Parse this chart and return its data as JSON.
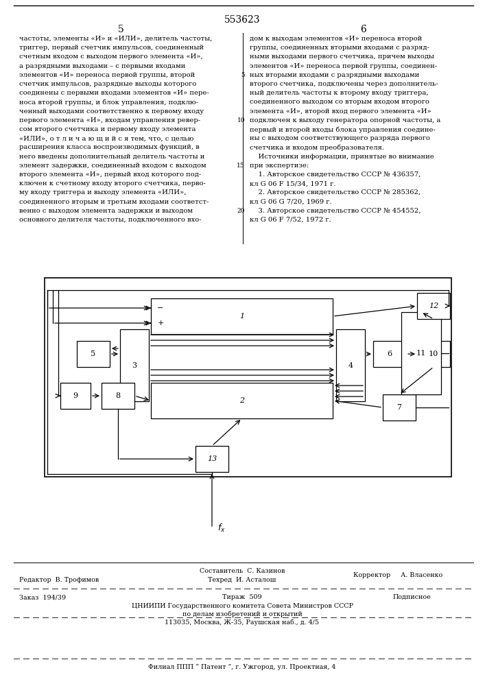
{
  "patent_number": "553623",
  "col1_text": [
    "частоты, элементы «И» и «ИЛИ», делитель частоты,",
    "триггер, первый счетчик импульсов, соединенный",
    "счетным входом с выходом первого элемента «И»,",
    "а разрядными выходами – с первыми входами",
    "элементов «И» переноса первой группы, второй",
    "счетчик импульсов, разрядные выходы которого",
    "соединены с первыми входами элементов «И» пере-",
    "носа второй группы, и блок управления, подклю-",
    "ченный выходами соответственно к первому входу",
    "первого элемента «И», входам управления ревер-",
    "сом второго счетчика и первому входу элемента",
    "«ИЛИ», о т л и ч а ю щ и й с я тем, что, с целью",
    "расширения класса воспроизводимых функций, в",
    "него введены дополнительный делитель частоты и",
    "элемент задержки, соединенный входом с выходом",
    "второго элемента «И», первый вход которого под-",
    "ключен к счетному входу второго счетчика, перво-",
    "му входу триггера и выходу элемента «ИЛИ»,",
    "соединенного вторым и третьим входами соответст-",
    "венно с выходом элемента задержки и выходом",
    "основного делителя частоты, подключенного вхо-"
  ],
  "col2_text": [
    "дом к выходам элементов «И» переноса второй",
    "группы, соединенных вторыми входами с разряд-",
    "ными выходами первого счетчика, причем выходы",
    "элементов «И» переноса первой группы, соединен-",
    "ных вторыми входами с разрядными выходами",
    "второго счетчика, подключены через дополнитель-",
    "ный делитель частоты к второму входу триггера,",
    "соединенного выходом со вторым входом второго",
    "элемента «И», второй вход первого элемента «И»",
    "подключен к выходу генератора опорной частоты, а",
    "первый и второй входы блока управления соедине-",
    "ны с выходом соответствующего разряда первого",
    "счетчика и входом преобразователя.",
    "    Источники информации, принятые во внимание",
    "при экспертизе:",
    "    1. Авторское свидетельство СССР № 436357,",
    "кл G 06 F 15/34, 1971 г.",
    "    2. Авторское свидетельство СССР № 285362,",
    "кл G 06 G 7/20, 1969 г.",
    "    3. Авторское свидетельство СССР № 454552,",
    "кл G 06 F 7/52, 1972 г."
  ],
  "col2_line_numbers": {
    "4": "5",
    "9": "10",
    "14": "15",
    "19": "20"
  },
  "footer_compositor": "Составитель  С. Казинов",
  "footer_techred": "Техред  И. Асталош",
  "footer_corrector": "Корректор     А. Власенко",
  "footer_editor": "Редактор  В. Трофимов",
  "footer_order": "Заказ  194/39",
  "footer_circ_sym": "◦",
  "footer_tirazh": "Тираж  509",
  "footer_podpisnoe": "Подписное",
  "footer_org": "ЦНИИПИ Государственного комитета Совета Министров СССР",
  "footer_dept": "по делам изобретений и открытий",
  "footer_addr": "113035, Москва, Ж-35, Раушская наб., д. 4/5",
  "footer_filial": "Филиал ППП “ Патент ”, г. Ужгород, ул. Проектная, 4"
}
